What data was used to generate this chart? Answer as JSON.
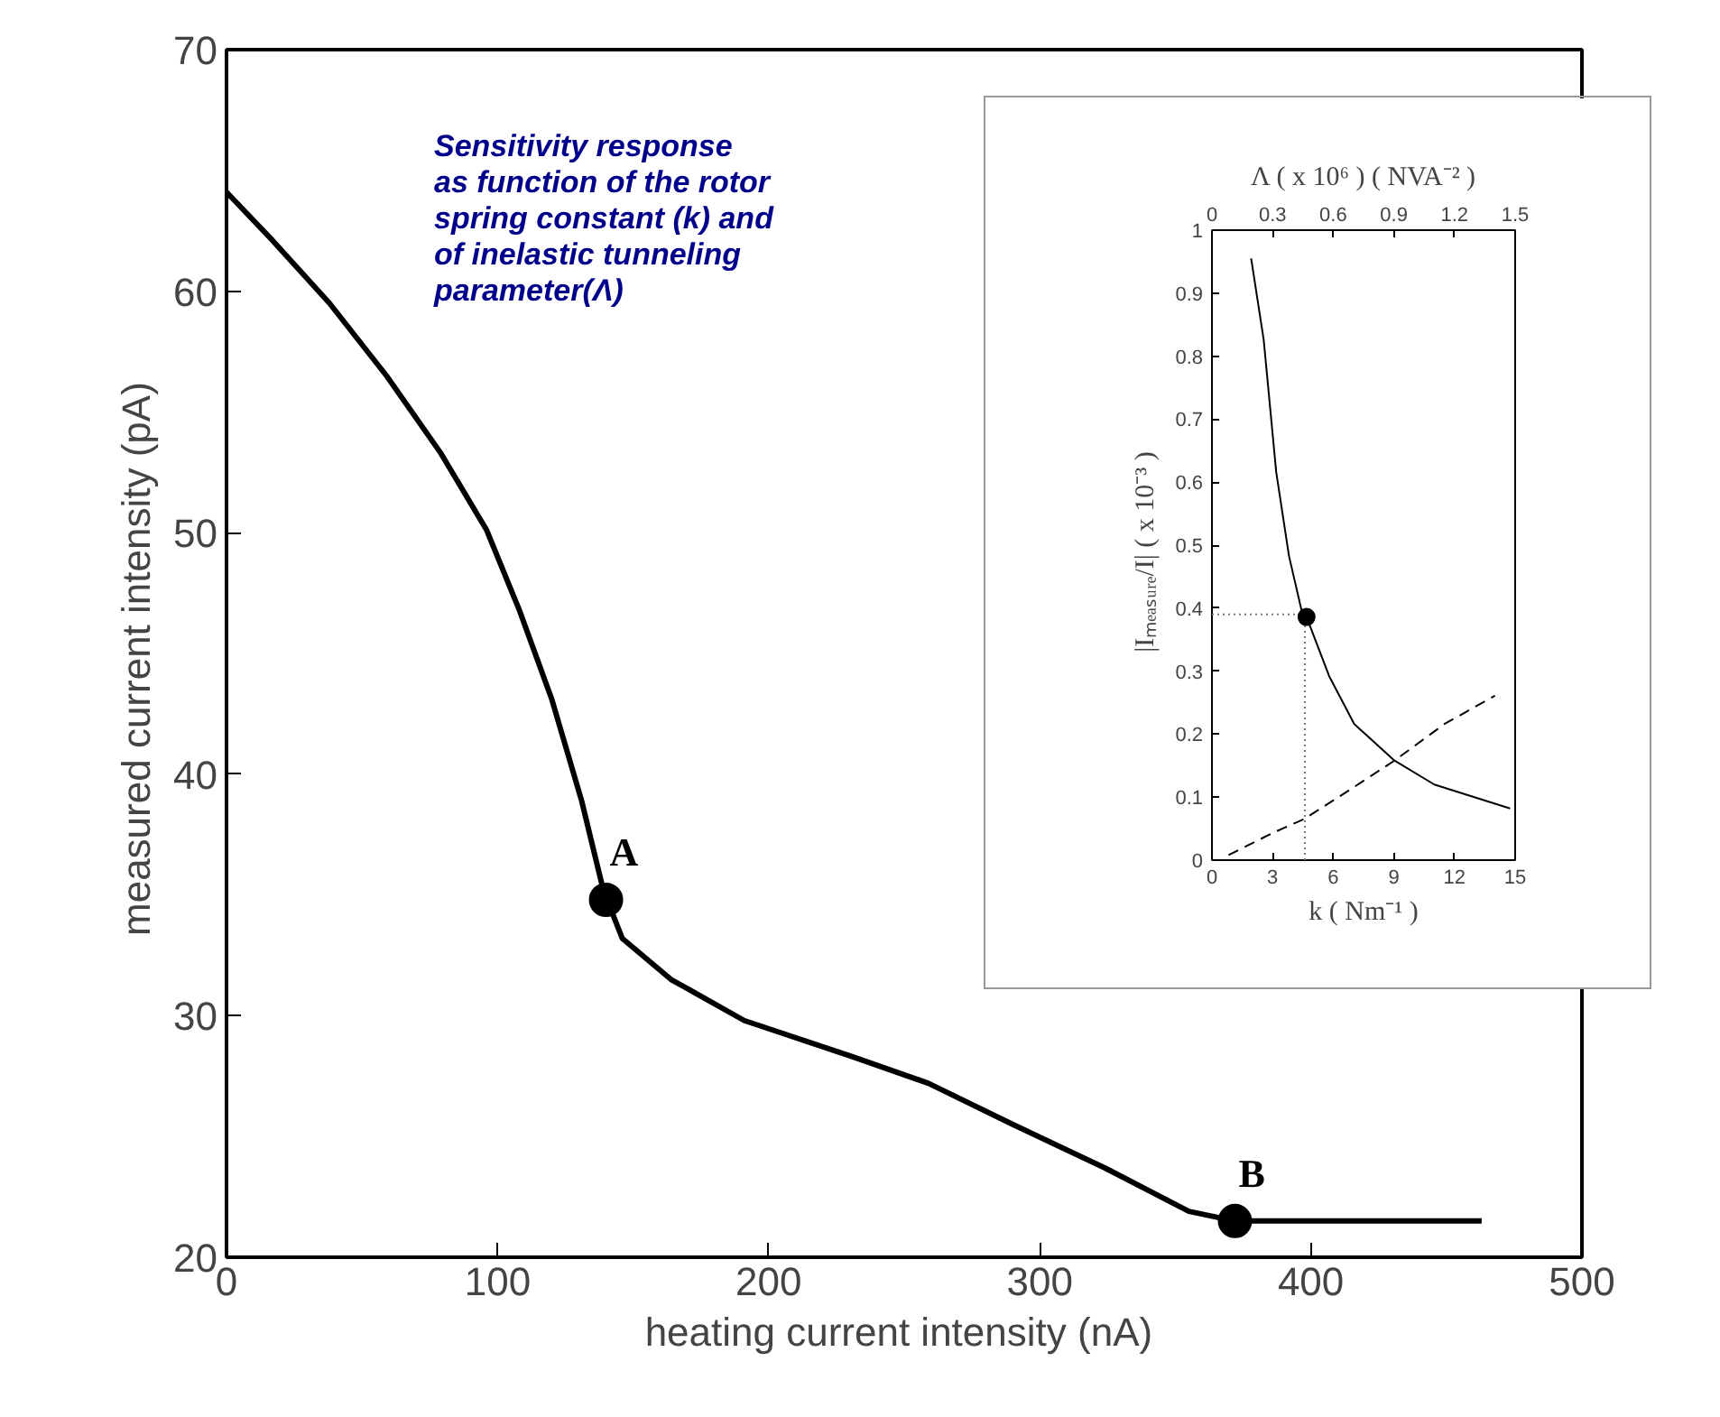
{
  "chart_data": [
    {
      "type": "line",
      "xlabel": "heating current intensity  (nA)",
      "ylabel": "measured current intensity  (pA)",
      "xlim": [
        0,
        500
      ],
      "xticks": [
        0,
        100,
        200,
        300,
        400,
        500
      ],
      "ylim": [
        20,
        70
      ],
      "yticks": [
        20,
        30,
        40,
        50,
        60,
        70
      ],
      "grid": false,
      "annotations": [
        "Sensitivity response\n   as function of the rotor\n   spring constant (k) and\n   of inelastic tunneling\n    parameter(Λ)",
        {
          "text": "A",
          "x": 140,
          "y": 34.8
        },
        {
          "text": "B",
          "x": 372,
          "y": 21.5
        }
      ],
      "series": [
        {
          "color": "#000000",
          "line_style": "solid",
          "x": [
            0,
            17,
            38,
            59,
            79,
            96,
            108,
            120,
            131,
            139,
            146,
            164,
            191,
            231,
            259,
            290,
            324,
            355,
            372,
            463
          ],
          "values": [
            64.1,
            62.1,
            59.5,
            56.5,
            53.3,
            50.1,
            46.8,
            43.1,
            38.9,
            35.2,
            33.2,
            31.5,
            29.8,
            28.3,
            27.2,
            25.5,
            23.7,
            21.9,
            21.5,
            21.5
          ]
        },
        {
          "type": "scatter",
          "color": "#000000",
          "marker": "circle",
          "x": [
            140,
            372
          ],
          "values": [
            34.8,
            21.5
          ]
        }
      ]
    },
    {
      "type": "line",
      "xlabel": "k ( Nm⁻¹ )",
      "x2label": "Λ ( x 10⁶ ) ( NVA⁻² )",
      "ylabel": "|Iₘₑₐₛᵤᵣₑ/I|   ( x 10⁻³ )",
      "xlim": [
        0,
        15
      ],
      "xticks": [
        0,
        3,
        6,
        9,
        12,
        15
      ],
      "x2lim": [
        0,
        1.5
      ],
      "x2ticks": [
        0,
        0.3,
        0.6,
        0.9,
        1.2,
        1.5
      ],
      "ylim": [
        0,
        1
      ],
      "yticks": [
        0,
        0.1,
        0.2,
        0.3,
        0.4,
        0.5,
        0.6,
        0.7,
        0.8,
        0.9,
        1
      ],
      "grid": false,
      "series": [
        {
          "color": "#000000",
          "line_style": "solid",
          "x": [
            1.94,
            2.56,
            3.18,
            3.81,
            4.43,
            4.68,
            5.8,
            7.04,
            9.03,
            11.0,
            14.75
          ],
          "values": [
            0.955,
            0.826,
            0.616,
            0.483,
            0.397,
            0.386,
            0.292,
            0.216,
            0.158,
            0.12,
            0.082
          ]
        },
        {
          "color": "#000000",
          "line_style": "dashed",
          "x": [
            0.82,
            3.06,
            4.55,
            6.79,
            9.03,
            11.5,
            14.0
          ],
          "values": [
            0.008,
            0.044,
            0.065,
            0.111,
            0.158,
            0.216,
            0.261
          ]
        },
        {
          "color": "#777777",
          "line_style": "dotted",
          "x": [
            0,
            4.6
          ],
          "values": [
            0.39,
            0.39
          ]
        },
        {
          "color": "#777777",
          "line_style": "dotted",
          "x": [
            4.6,
            4.6
          ],
          "values": [
            0,
            0.39
          ]
        },
        {
          "type": "scatter",
          "color": "#000000",
          "marker": "circle",
          "x": [
            4.68
          ],
          "values": [
            0.386
          ]
        }
      ]
    }
  ]
}
